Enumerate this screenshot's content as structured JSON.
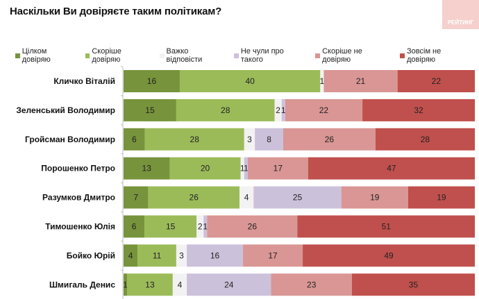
{
  "chart_data": {
    "type": "bar",
    "orientation": "horizontal",
    "stacked": true,
    "title": "Наскільки Ви довіряєте таким політикам?",
    "logo_text": "РЕЙТИНГ",
    "legend_position": "top",
    "categories": [
      "Кличко Віталій",
      "Зеленський Володимир",
      "Гройсман Володимир",
      "Порошенко Петро",
      "Разумков Дмитро",
      "Тимошенко Юлія",
      "Бойко Юрій",
      "Шмигаль Денис"
    ],
    "series": [
      {
        "name": "Цілком довіряю",
        "color": "#77933c",
        "values": [
          16,
          15,
          6,
          13,
          7,
          6,
          4,
          1
        ]
      },
      {
        "name": "Скоріше довіряю",
        "color": "#9bbb59",
        "values": [
          40,
          28,
          28,
          20,
          26,
          15,
          11,
          13
        ]
      },
      {
        "name": "Важко відповісти",
        "color": "#f2f2f2",
        "values": [
          1,
          2,
          3,
          1,
          4,
          2,
          3,
          4
        ]
      },
      {
        "name": "Не чули про такого",
        "color": "#ccc1da",
        "values": [
          0,
          1,
          8,
          1,
          25,
          1,
          16,
          24
        ]
      },
      {
        "name": "Скоріше не довіряю",
        "color": "#d99694",
        "values": [
          21,
          22,
          26,
          17,
          19,
          26,
          17,
          23
        ]
      },
      {
        "name": "Зовсім не довіряю",
        "color": "#c0504d",
        "values": [
          22,
          32,
          28,
          47,
          19,
          51,
          49,
          35
        ]
      }
    ],
    "xlim": [
      0,
      100
    ],
    "grid": false
  }
}
